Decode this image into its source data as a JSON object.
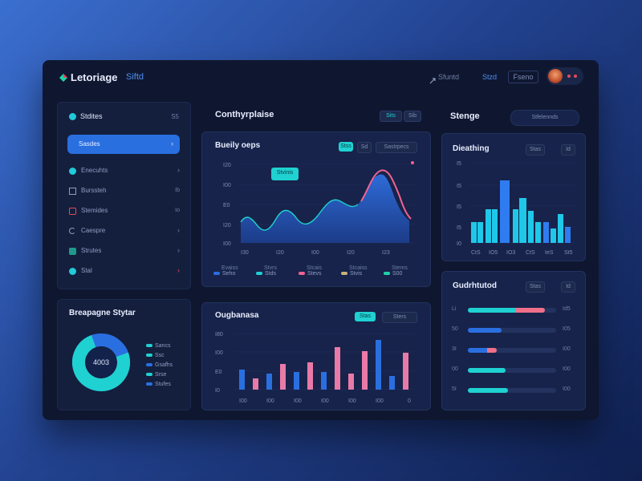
{
  "header": {
    "brand": "Letoriage",
    "brand_suffix": "Siftd",
    "nav_item_1": "Sfuntd",
    "nav_item_2": "Stzd",
    "nav_button": "Fseno"
  },
  "sidebar": {
    "title": "Stdites",
    "title_value": "S5",
    "active_item": "Sasdes",
    "items": [
      {
        "label": "Enecuhts"
      },
      {
        "label": "Burssteh",
        "value": "Ib"
      },
      {
        "label": "Stemides",
        "value": "Io"
      },
      {
        "label": "Caespre"
      },
      {
        "label": "Strutes"
      },
      {
        "label": "Stal"
      }
    ]
  },
  "donut_panel": {
    "title": "Breapagne Stytar",
    "center_label": "4003",
    "legend": [
      "Sancs",
      "Ssc",
      "Gsafhs",
      "Srse",
      "Stufes"
    ]
  },
  "overview": {
    "title": "Conthyrplaise",
    "btn_1": "Sits",
    "btn_2": "Sib"
  },
  "area_chart": {
    "title": "Bueily oeps",
    "chip_1": "Stss",
    "chip_2": "Sd",
    "chip_3": "Sastrpecs",
    "tooltip": "Stvinis",
    "yticks": [
      "I20",
      "I00",
      "E0",
      "I20",
      "I00"
    ],
    "xticks": [
      "I30",
      "I20",
      "I00",
      "I20",
      "I23"
    ],
    "legend": [
      {
        "top": "Evaiss",
        "bottom": "Seho"
      },
      {
        "top": "Stvrs",
        "bottom": "Stds"
      },
      {
        "top": "Stcais",
        "bottom": "Stevs"
      },
      {
        "top": "Stcaiss",
        "bottom": "Stvis"
      },
      {
        "top": "Stems",
        "bottom": "S00"
      }
    ],
    "colors": {
      "line": "#f06292",
      "fill": "#2b62c9"
    }
  },
  "right_top": {
    "title": "Stenge",
    "button": "Stfelennds"
  },
  "bar_chart": {
    "title": "Dieathing",
    "chip_1": "Stas",
    "chip_2": "Id",
    "yticks": [
      "I5",
      "I5",
      "I5",
      "I5",
      "I0"
    ],
    "xticks": [
      "CtS",
      "IO5",
      "IO3",
      "CtS",
      "IeS",
      "St5"
    ],
    "colors": {
      "main": "#1fc8e8",
      "alt": "#2f7cf0"
    }
  },
  "column_chart": {
    "title": "Ougbanasa",
    "chip_1": "Stas",
    "chip_2": "Sters",
    "yticks": [
      "I80",
      "I00",
      "E0",
      "I0"
    ],
    "xticks": [
      "I00",
      "I00",
      "I00",
      "I00",
      "I00",
      "I00",
      "0"
    ],
    "colors": {
      "blue": "#2a6fe0",
      "pink": "#e97aa8"
    }
  },
  "progress_panel": {
    "title": "Gudrhtutod",
    "chip_1": "Stas",
    "chip_2": "Id",
    "rows": [
      {
        "label": "Li",
        "value": "Id5",
        "fill": 0.74,
        "color": "#1fd1d1",
        "accent": "#f0708a"
      },
      {
        "label": "50",
        "value": "I05",
        "fill": 0.38,
        "color": "#2a6fe0"
      },
      {
        "label": "3I",
        "value": "I00",
        "fill": 0.32,
        "color": "#2a6fe0",
        "accent": "#f0708a"
      },
      {
        "label": "00",
        "value": "I00",
        "fill": 0.42,
        "color": "#1fd1d1"
      },
      {
        "label": "5I",
        "value": "I00",
        "fill": 0.45,
        "color": "#1fd1d1"
      }
    ]
  }
}
